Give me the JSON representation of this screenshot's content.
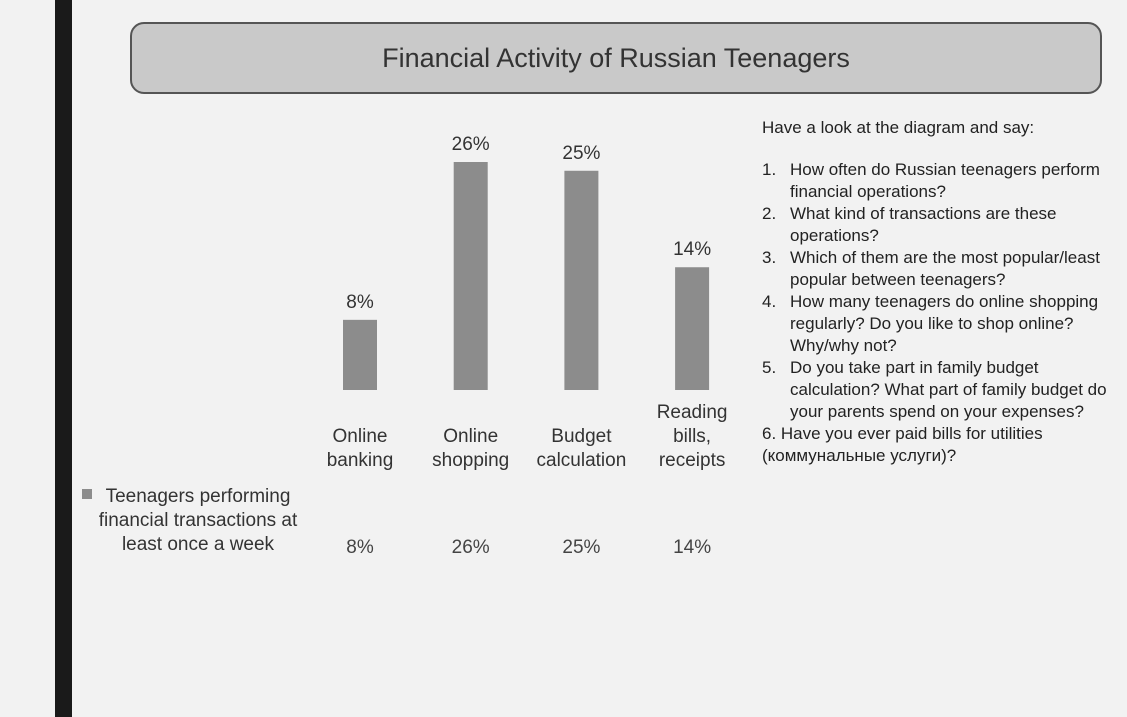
{
  "chart_data": {
    "type": "bar",
    "title": "Financial Activity of Russian Teenagers",
    "categories": [
      "Online banking",
      "Online shopping",
      "Budget calculation",
      "Reading bills, receipts"
    ],
    "series": [
      {
        "name": "Teenagers performing financial transactions at least once a week",
        "color": "#8c8c8c",
        "values": [
          8,
          26,
          25,
          14
        ],
        "value_labels": [
          "8%",
          "26%",
          "25%",
          "14%"
        ]
      }
    ]
  },
  "intro": "Have a look at the diagram and say:",
  "questions": [
    {
      "number": "1.",
      "text": "How often do Russian teenagers perform financial operations?"
    },
    {
      "number": "2.",
      "text": "What kind of transactions are these operations?"
    },
    {
      "number": "3.",
      "text": "Which of them are the most popular/least popular between teenagers?"
    },
    {
      "number": "4.",
      "text": "How many teenagers do online shopping regularly? Do you like to shop online? Why/why not?"
    },
    {
      "number": "5.",
      "text": "Do you take part in family budget calculation? What part of family budget do your parents spend on your expenses?"
    }
  ],
  "last_question": "6. Have you ever paid bills for utilities (коммунальные услуги)?"
}
